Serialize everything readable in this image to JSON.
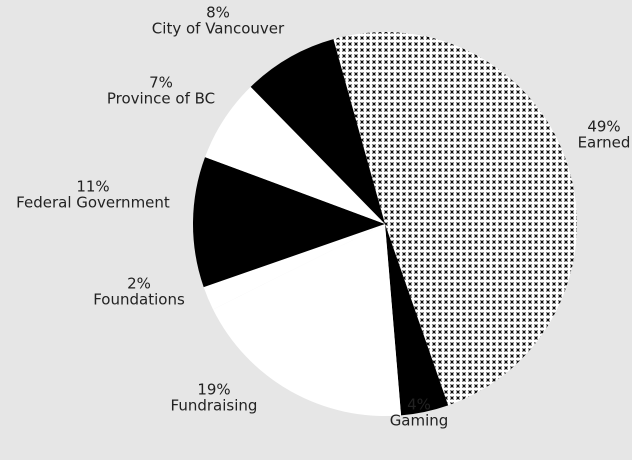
{
  "chart_data": {
    "type": "pie",
    "categories": [
      "Earned",
      "Gaming",
      "Fundraising",
      "Foundations",
      "Federal Government",
      "Province of BC",
      "City of Vancouver"
    ],
    "values": [
      49,
      4,
      19,
      2,
      11,
      7,
      8
    ],
    "value_labels": [
      "49%",
      "4%",
      "19%",
      "2%",
      "11%",
      "7%",
      "8%"
    ],
    "colors": [
      "#8c8c8c",
      "#000000",
      "#ffffff",
      "#ffffff",
      "#000000",
      "#ffffff",
      "#000000"
    ]
  }
}
